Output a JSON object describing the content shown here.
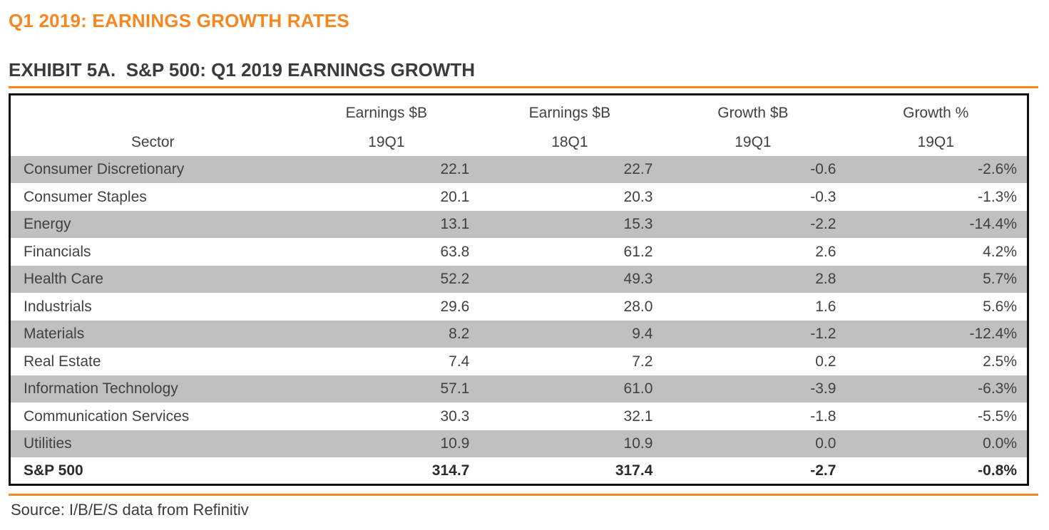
{
  "page": {
    "title": "Q1 2019: EARNINGS GROWTH RATES",
    "exhibit_title": "EXHIBIT 5A.  S&P 500: Q1 2019 EARNINGS GROWTH",
    "source": "Source: I/B/E/S data from Refinitiv"
  },
  "colors": {
    "accent_orange": "#F6861F",
    "row_stripe_gray": "#C0C0C0",
    "heading_dark": "#3B3B3C",
    "table_text": "#414042"
  },
  "chart_data": {
    "type": "table",
    "title": "S&P 500: Q1 2019 Earnings Growth",
    "columns": [
      {
        "line1": "",
        "line2": "Sector"
      },
      {
        "line1": "Earnings $B",
        "line2": "19Q1"
      },
      {
        "line1": "Earnings $B",
        "line2": "18Q1"
      },
      {
        "line1": "Growth $B",
        "line2": "19Q1"
      },
      {
        "line1": "Growth %",
        "line2": "19Q1"
      }
    ],
    "rows": [
      {
        "sector": "Consumer Discretionary",
        "earnings_19q1": "22.1",
        "earnings_18q1": "22.7",
        "growth_b": "-0.6",
        "growth_pct": "-2.6%"
      },
      {
        "sector": "Consumer Staples",
        "earnings_19q1": "20.1",
        "earnings_18q1": "20.3",
        "growth_b": "-0.3",
        "growth_pct": "-1.3%"
      },
      {
        "sector": "Energy",
        "earnings_19q1": "13.1",
        "earnings_18q1": "15.3",
        "growth_b": "-2.2",
        "growth_pct": "-14.4%"
      },
      {
        "sector": "Financials",
        "earnings_19q1": "63.8",
        "earnings_18q1": "61.2",
        "growth_b": "2.6",
        "growth_pct": "4.2%"
      },
      {
        "sector": "Health Care",
        "earnings_19q1": "52.2",
        "earnings_18q1": "49.3",
        "growth_b": "2.8",
        "growth_pct": "5.7%"
      },
      {
        "sector": "Industrials",
        "earnings_19q1": "29.6",
        "earnings_18q1": "28.0",
        "growth_b": "1.6",
        "growth_pct": "5.6%"
      },
      {
        "sector": "Materials",
        "earnings_19q1": "8.2",
        "earnings_18q1": "9.4",
        "growth_b": "-1.2",
        "growth_pct": "-12.4%"
      },
      {
        "sector": "Real Estate",
        "earnings_19q1": "7.4",
        "earnings_18q1": "7.2",
        "growth_b": "0.2",
        "growth_pct": "2.5%"
      },
      {
        "sector": "Information Technology",
        "earnings_19q1": "57.1",
        "earnings_18q1": "61.0",
        "growth_b": "-3.9",
        "growth_pct": "-6.3%"
      },
      {
        "sector": "Communication Services",
        "earnings_19q1": "30.3",
        "earnings_18q1": "32.1",
        "growth_b": "-1.8",
        "growth_pct": "-5.5%"
      },
      {
        "sector": "Utilities",
        "earnings_19q1": "10.9",
        "earnings_18q1": "10.9",
        "growth_b": "0.0",
        "growth_pct": "0.0%"
      }
    ],
    "total_row": {
      "sector": "S&P 500",
      "earnings_19q1": "314.7",
      "earnings_18q1": "317.4",
      "growth_b": "-2.7",
      "growth_pct": "-0.8%"
    }
  }
}
